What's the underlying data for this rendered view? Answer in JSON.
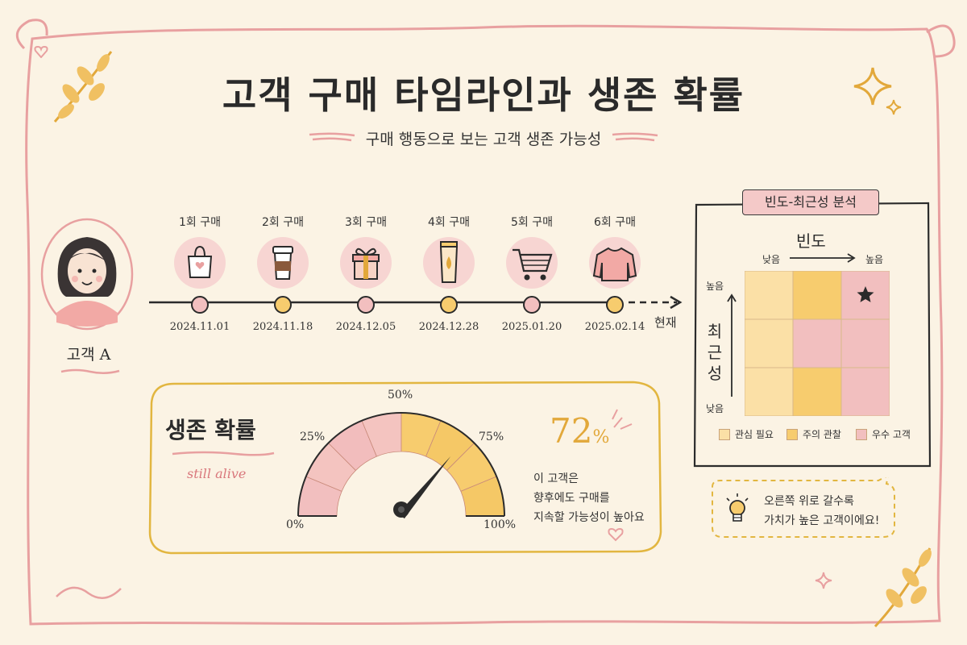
{
  "title": "고객 구매 타임라인과 생존 확률",
  "subtitle": "구매 행동으로 보는 고객 생존 가능성",
  "customer": {
    "name": "고객 A"
  },
  "timeline": {
    "steps": [
      {
        "label": "1회 구매",
        "date": "2024.11.01",
        "icon": "shopping-bag-icon"
      },
      {
        "label": "2회 구매",
        "date": "2024.11.18",
        "icon": "coffee-cup-icon"
      },
      {
        "label": "3회 구매",
        "date": "2024.12.05",
        "icon": "gift-box-icon"
      },
      {
        "label": "4회 구매",
        "date": "2024.12.28",
        "icon": "cream-tube-icon"
      },
      {
        "label": "5회 구매",
        "date": "2025.01.20",
        "icon": "shopping-cart-icon"
      },
      {
        "label": "6회 구매",
        "date": "2025.02.14",
        "icon": "sweater-icon"
      }
    ],
    "now_label": "현재"
  },
  "survival": {
    "title": "생존 확률",
    "tagline": "still alive",
    "ticks": [
      "0%",
      "25%",
      "50%",
      "75%",
      "100%"
    ],
    "value": 72,
    "value_text": "72",
    "value_unit": "%",
    "desc": [
      "이 고객은",
      "향후에도 구매를",
      "지속할 가능성이 높아요"
    ]
  },
  "matrix": {
    "tag": "빈도-최근성 분석",
    "x_title": "빈도",
    "x_low": "낮음",
    "x_high": "높음",
    "y_title": "최근성",
    "y_low": "낮음",
    "y_high": "높음",
    "legend": [
      "관심 필요",
      "주의 관찰",
      "우수 고객"
    ],
    "colors": {
      "low": "#fbe0a6",
      "mid": "#f7cc6e",
      "high": "#f2bfbf"
    }
  },
  "tip": [
    "오른쪽 위로 갈수록",
    "가치가 높은 고객이에요!"
  ]
}
